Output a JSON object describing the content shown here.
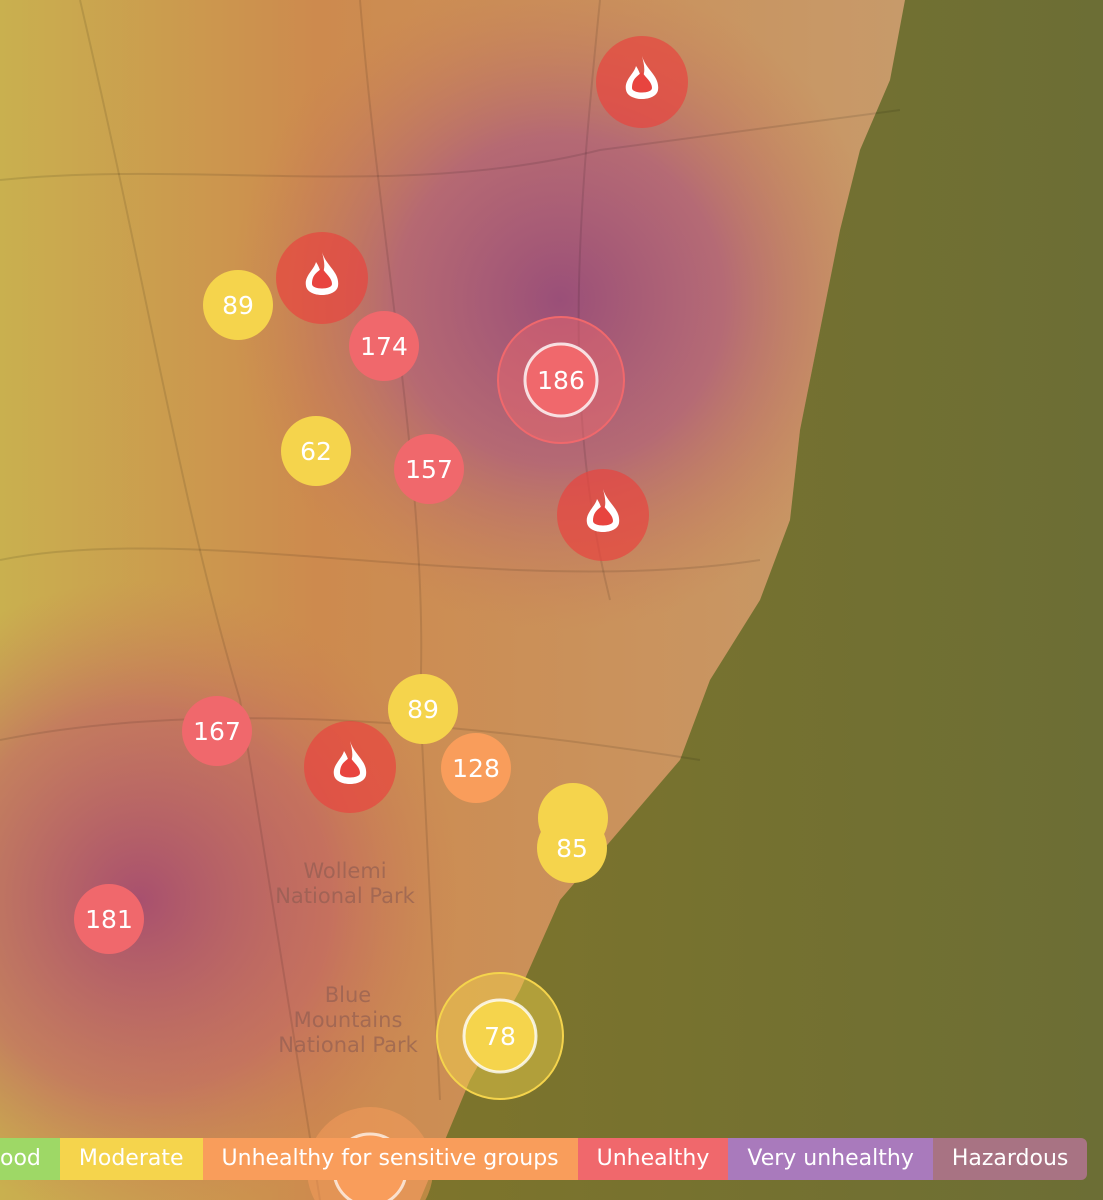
{
  "aqi_readings": [
    "89",
    "174",
    "186",
    "62",
    "157",
    "167",
    "89",
    "128",
    "85",
    "181",
    "78"
  ],
  "places": [
    [
      "Wollemi",
      "National Park"
    ],
    [
      "Blue",
      "Mountains",
      "National Park"
    ]
  ],
  "legend": {
    "categories": [
      "ood",
      "Moderate",
      "Unhealthy for sensitive groups",
      "Unhealthy",
      "Very unhealthy",
      "Hazardous"
    ]
  }
}
